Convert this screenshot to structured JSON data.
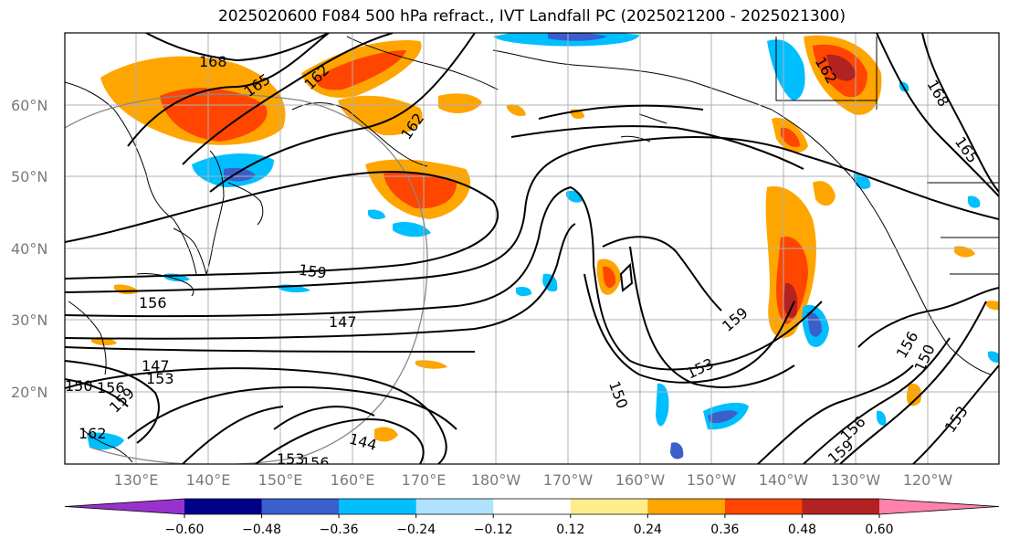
{
  "title": "2025020600 F084 500 hPa refract., IVT Landfall PC (2025021200 - 2025021300)",
  "lat_labels": [
    "60°N",
    "50°N",
    "40°N",
    "30°N",
    "20°N"
  ],
  "lon_labels": [
    "130°E",
    "140°E",
    "150°E",
    "160°E",
    "170°E",
    "180°W",
    "170°W",
    "160°W",
    "150°W",
    "140°W",
    "130°W",
    "120°W"
  ],
  "contour_labels": [
    "168",
    "165",
    "162",
    "162",
    "162",
    "168",
    "165",
    "159",
    "156",
    "147",
    "147",
    "153",
    "156",
    "159",
    "162",
    "150",
    "144",
    "153",
    "156",
    "150",
    "153",
    "159",
    "156",
    "150",
    "153",
    "159",
    "156"
  ],
  "colorbar": {
    "ticks": [
      "−0.60",
      "−0.48",
      "−0.36",
      "−0.24",
      "−0.12",
      "0.12",
      "0.24",
      "0.36",
      "0.48",
      "0.60"
    ],
    "colors": [
      "#9932cc",
      "#00008b",
      "#3a5fcd",
      "#00bfff",
      "#b0e2ff",
      "#ffffff",
      "#ffec8b",
      "#ffa500",
      "#ff4500",
      "#b22222",
      "#ff82ab"
    ]
  }
}
